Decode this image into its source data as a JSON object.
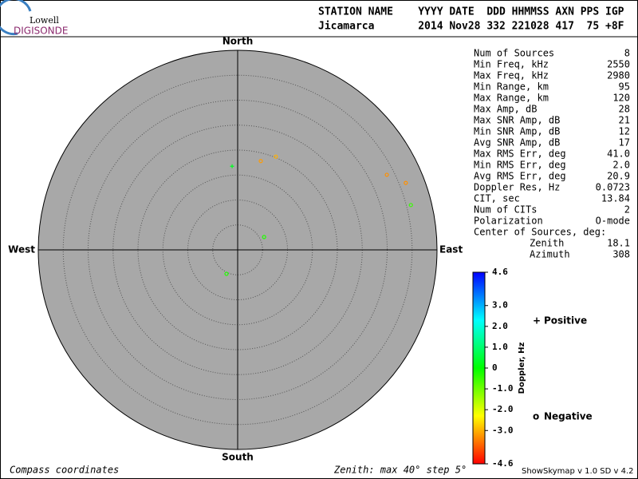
{
  "logo": {
    "top": "Lowell",
    "bottom": "DIGISONDE"
  },
  "header": {
    "labels": "STATION NAME    YYYY DATE  DDD HHMMSS AXN PPS IGP",
    "values": "Jicamarca       2014 Nov28 332 221028 417  75 +8F"
  },
  "stats": [
    [
      "Num of Sources",
      "8"
    ],
    [
      "Min Freq, kHz",
      "2550"
    ],
    [
      "Max Freq, kHz",
      "2980"
    ],
    [
      "Min Range, km",
      "95"
    ],
    [
      "Max Range, km",
      "120"
    ],
    [
      "Max Amp, dB",
      "28"
    ],
    [
      "Max SNR Amp, dB",
      "21"
    ],
    [
      "Min SNR Amp, dB",
      "12"
    ],
    [
      "Avg SNR Amp, dB",
      "17"
    ],
    [
      "Max RMS Err, deg",
      "41.0"
    ],
    [
      "Min RMS Err, deg",
      "2.0"
    ],
    [
      "Avg RMS Err, deg",
      "20.9"
    ],
    [
      "Doppler Res, Hz",
      "0.0723"
    ],
    [
      "CIT, sec",
      "13.84"
    ],
    [
      "Num of CITs",
      "2"
    ],
    [
      "Polarization",
      "O-mode"
    ]
  ],
  "center": {
    "title": "Center of Sources, deg:",
    "rows": [
      [
        "Zenith",
        "18.1"
      ],
      [
        "Azimuth",
        "308"
      ]
    ]
  },
  "footer": {
    "left": "Compass coordinates",
    "middle": "Zenith: max 40°  step 5°",
    "right": "ShowSkymap v 1.0  SD v 4.2"
  },
  "chart_data": {
    "type": "skymap",
    "directions": {
      "north": "North",
      "south": "South",
      "west": "West",
      "east": "East"
    },
    "rlim": [
      0,
      40
    ],
    "rticks": [
      5,
      10,
      15,
      20,
      25,
      30,
      35,
      40
    ],
    "points": {
      "zenith": [
        16.8,
        18.4,
        20.2,
        33.5,
        36.3,
        35.9,
        5.9,
        5.3
      ],
      "azimuth": [
        356.2,
        14.6,
        22.3,
        63.3,
        68.3,
        75.5,
        64.1,
        205
      ],
      "doppler": [
        0.3,
        -3.2,
        -3.0,
        -3.3,
        -3.3,
        -0.5,
        -0.3,
        -0.3
      ]
    },
    "colorbar": {
      "label": "Doppler, Hz",
      "ylim": [
        -4.6,
        4.6
      ],
      "yticks": [
        4.6,
        {
          "value": 3,
          "label": "3.0"
        },
        {
          "value": 2,
          "label": "2.0"
        },
        {
          "value": 1,
          "label": "1.0"
        },
        0,
        {
          "value": -1,
          "label": "-1.0"
        },
        {
          "value": -2,
          "label": "-2.0"
        },
        {
          "value": -3,
          "label": "-3.0"
        },
        -4.6
      ]
    },
    "legend": {
      "positive": {
        "symbol": "+",
        "label": "Positive",
        "color": "#0000cc"
      },
      "negative": {
        "symbol": "o",
        "label": "Negative",
        "color": "#dd0000"
      }
    }
  }
}
